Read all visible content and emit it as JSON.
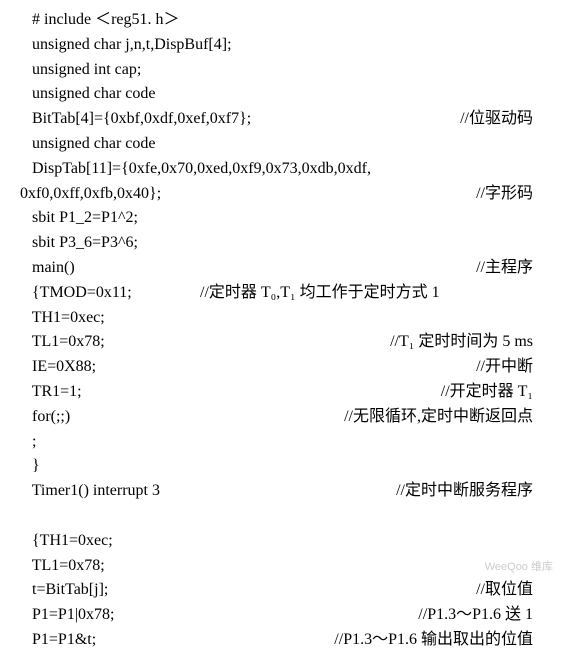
{
  "lines": {
    "l1": "   # include ＜reg51. h＞",
    "l2": "   unsigned char j,n,t,DispBuf[4];",
    "l3": "   unsigned int cap;",
    "l4": "   unsigned char code",
    "l5": "   BitTab[4]={0xbf,0xdf,0xef,0xf7};",
    "c5": "//位驱动码",
    "l6": "   unsigned char code",
    "l7": "   DispTab[11]={0xfe,0x70,0xed,0xf9,0x73,0xdb,0xdf,",
    "l8": "0xf0,0xff,0xfb,0x40};",
    "c8": "//字形码",
    "l9": "   sbit P1_2=P1^2;",
    "l10": "   sbit P3_6=P3^6;",
    "l11": "   main()",
    "c11": "//主程序",
    "l12": "   {TMOD=0x11;",
    "c12": "//定时器 T₀,T₁ 均工作于定时方式 1",
    "l13": "   TH1=0xec;",
    "l14": "   TL1=0x78;",
    "c14": "//T₁ 定时时间为 5 ms",
    "l15": "   IE=0X88;",
    "c15": "//开中断",
    "l16": "   TR1=1;",
    "c16": "//开定时器 T₁",
    "l17": "   for(;;)",
    "c17": "//无限循环,定时中断返回点",
    "l18": "   ;",
    "l19": "   }",
    "l20": "   Timer1() interrupt 3",
    "c20": "//定时中断服务程序",
    "l21": " ",
    "l22": "   {TH1=0xec;",
    "l23": "   TL1=0x78;",
    "l24": "   t=BitTab[j];",
    "c24": "//取位值",
    "l25": "   P1=P1|0x78;",
    "c25": "//P1.3～P1.6 送 1",
    "l26": "   P1=P1&t;",
    "c26": "//P1.3～P1.6 输出取出的位值"
  },
  "watermark": "WeeQoo 维库"
}
